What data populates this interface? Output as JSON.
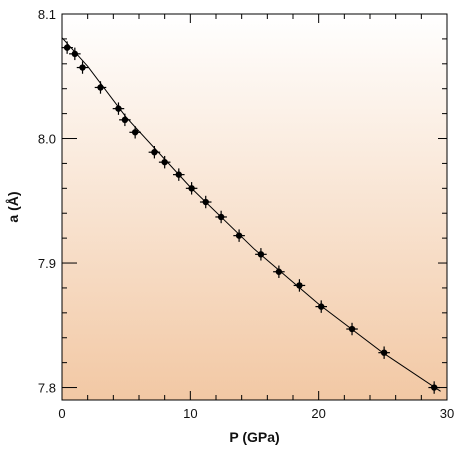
{
  "chart_data": {
    "type": "scatter",
    "title": "",
    "xlabel": "P (GPa)",
    "ylabel": "a (Å)",
    "xlim": [
      0,
      30
    ],
    "ylim": [
      7.79,
      8.1
    ],
    "x_ticks": [
      0,
      10,
      20,
      30
    ],
    "y_ticks": [
      7.8,
      7.9,
      8.0,
      8.1
    ],
    "x_tick_labels": [
      "0",
      "10",
      "20",
      "30"
    ],
    "y_tick_labels": [
      "7.8",
      "7.9",
      "8.0",
      "8.1"
    ],
    "grid": false,
    "background_gradient": [
      "#ffffff",
      "#f2c8a4"
    ],
    "series": [
      {
        "marker": "filled-circle-with-errorbars",
        "x_error": 0.45,
        "y_error": 0.005,
        "x": [
          0.4,
          1.0,
          1.6,
          3.0,
          4.4,
          4.9,
          5.7,
          7.2,
          8.0,
          9.1,
          10.1,
          11.2,
          12.4,
          13.8,
          15.5,
          16.9,
          18.5,
          20.2,
          22.6,
          25.1,
          29.0
        ],
        "y": [
          8.073,
          8.068,
          8.057,
          8.041,
          8.024,
          8.015,
          8.005,
          7.989,
          7.981,
          7.971,
          7.96,
          7.949,
          7.937,
          7.922,
          7.907,
          7.893,
          7.882,
          7.865,
          7.847,
          7.828,
          7.8
        ]
      }
    ],
    "fit_line": {
      "x": [
        0,
        2,
        5,
        10,
        15,
        20,
        25,
        29.5
      ],
      "y": [
        8.081,
        8.058,
        8.017,
        7.961,
        7.911,
        7.867,
        7.828,
        7.797
      ]
    }
  }
}
